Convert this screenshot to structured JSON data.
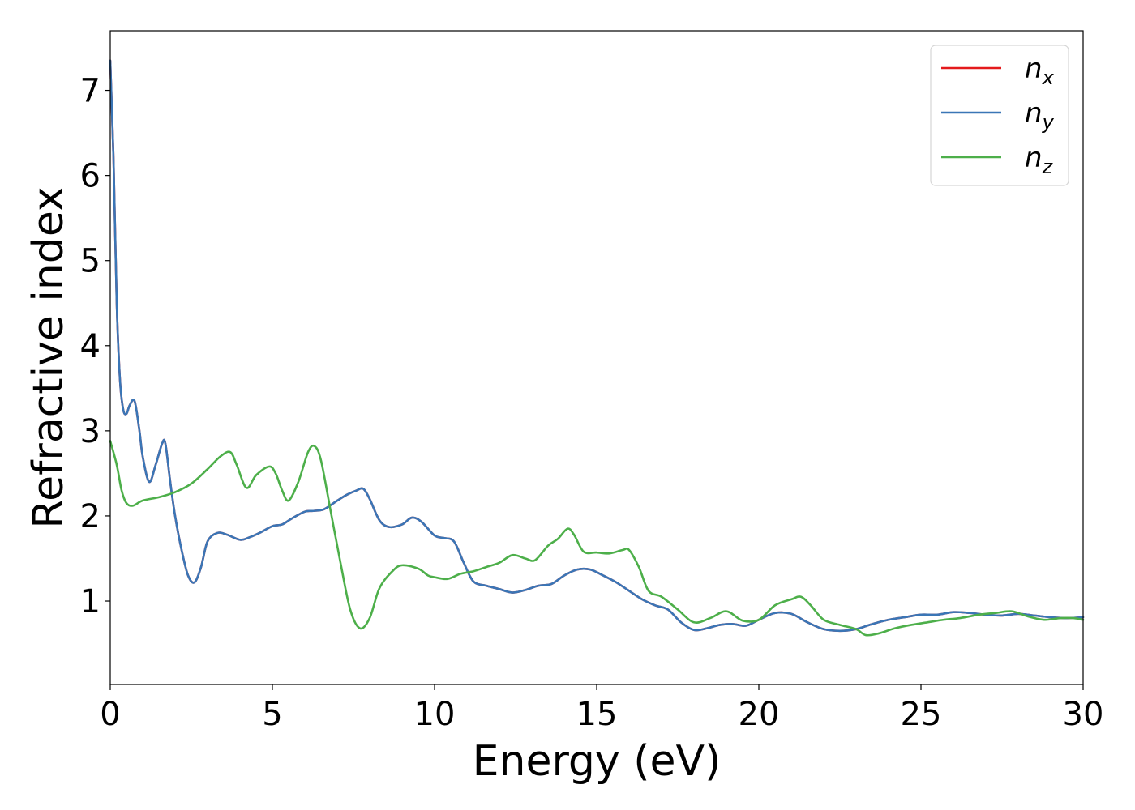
{
  "chart_data": {
    "type": "line",
    "xlabel": "Energy (eV)",
    "ylabel": "Refractive index",
    "xlim": [
      0,
      30
    ],
    "ylim": [
      0.02,
      7.7
    ],
    "xticks": [
      0,
      5,
      10,
      15,
      20,
      25,
      30
    ],
    "yticks": [
      1,
      2,
      3,
      4,
      5,
      6,
      7
    ],
    "grid": false,
    "legend_position": "top-right",
    "series": [
      {
        "name": "n",
        "subscript": "x",
        "color": "#e41a1c",
        "x": [
          0,
          0.1,
          0.2,
          0.3,
          0.4,
          0.5,
          0.6,
          0.75,
          0.9,
          1.0,
          1.2,
          1.4,
          1.6,
          1.7,
          1.85,
          2.0,
          2.2,
          2.4,
          2.6,
          2.8,
          3.0,
          3.3,
          3.6,
          4.0,
          4.3,
          4.6,
          5.0,
          5.3,
          5.6,
          6.0,
          6.3,
          6.6,
          7.0,
          7.3,
          7.6,
          7.8,
          8.0,
          8.3,
          8.6,
          9.0,
          9.3,
          9.6,
          10.0,
          10.3,
          10.6,
          10.9,
          11.2,
          11.6,
          12.0,
          12.4,
          12.8,
          13.2,
          13.6,
          14.0,
          14.4,
          14.8,
          15.2,
          15.6,
          16.0,
          16.4,
          16.8,
          17.2,
          17.6,
          18.0,
          18.4,
          18.8,
          19.2,
          19.6,
          20.0,
          20.5,
          21.0,
          21.5,
          22.0,
          22.5,
          23.0,
          23.5,
          24.0,
          24.5,
          25.0,
          25.5,
          26.0,
          26.5,
          27.0,
          27.5,
          28.0,
          28.5,
          29.0,
          29.5,
          30.0
        ],
        "values": [
          7.35,
          6.2,
          4.5,
          3.6,
          3.25,
          3.2,
          3.3,
          3.35,
          3.0,
          2.7,
          2.4,
          2.6,
          2.85,
          2.85,
          2.4,
          2.0,
          1.6,
          1.3,
          1.22,
          1.4,
          1.7,
          1.8,
          1.78,
          1.72,
          1.75,
          1.8,
          1.88,
          1.9,
          1.97,
          2.05,
          2.06,
          2.08,
          2.18,
          2.25,
          2.3,
          2.32,
          2.2,
          1.95,
          1.87,
          1.9,
          1.98,
          1.93,
          1.77,
          1.74,
          1.7,
          1.45,
          1.23,
          1.18,
          1.14,
          1.1,
          1.13,
          1.18,
          1.2,
          1.3,
          1.37,
          1.37,
          1.3,
          1.22,
          1.12,
          1.02,
          0.95,
          0.9,
          0.75,
          0.66,
          0.68,
          0.72,
          0.73,
          0.71,
          0.78,
          0.86,
          0.85,
          0.75,
          0.67,
          0.65,
          0.67,
          0.73,
          0.78,
          0.81,
          0.84,
          0.84,
          0.87,
          0.86,
          0.84,
          0.83,
          0.85,
          0.83,
          0.81,
          0.8,
          0.81
        ]
      },
      {
        "name": "n",
        "subscript": "y",
        "color": "#3a76b6",
        "x": [
          0,
          0.1,
          0.2,
          0.3,
          0.4,
          0.5,
          0.6,
          0.75,
          0.9,
          1.0,
          1.2,
          1.4,
          1.6,
          1.7,
          1.85,
          2.0,
          2.2,
          2.4,
          2.6,
          2.8,
          3.0,
          3.3,
          3.6,
          4.0,
          4.3,
          4.6,
          5.0,
          5.3,
          5.6,
          6.0,
          6.3,
          6.6,
          7.0,
          7.3,
          7.6,
          7.8,
          8.0,
          8.3,
          8.6,
          9.0,
          9.3,
          9.6,
          10.0,
          10.3,
          10.6,
          10.9,
          11.2,
          11.6,
          12.0,
          12.4,
          12.8,
          13.2,
          13.6,
          14.0,
          14.4,
          14.8,
          15.2,
          15.6,
          16.0,
          16.4,
          16.8,
          17.2,
          17.6,
          18.0,
          18.4,
          18.8,
          19.2,
          19.6,
          20.0,
          20.5,
          21.0,
          21.5,
          22.0,
          22.5,
          23.0,
          23.5,
          24.0,
          24.5,
          25.0,
          25.5,
          26.0,
          26.5,
          27.0,
          27.5,
          28.0,
          28.5,
          29.0,
          29.5,
          30.0
        ],
        "values": [
          7.35,
          6.2,
          4.5,
          3.6,
          3.25,
          3.2,
          3.3,
          3.35,
          3.0,
          2.7,
          2.4,
          2.6,
          2.85,
          2.85,
          2.4,
          2.0,
          1.6,
          1.3,
          1.22,
          1.4,
          1.7,
          1.8,
          1.78,
          1.72,
          1.75,
          1.8,
          1.88,
          1.9,
          1.97,
          2.05,
          2.06,
          2.08,
          2.18,
          2.25,
          2.3,
          2.32,
          2.2,
          1.95,
          1.87,
          1.9,
          1.98,
          1.93,
          1.77,
          1.74,
          1.7,
          1.45,
          1.23,
          1.18,
          1.14,
          1.1,
          1.13,
          1.18,
          1.2,
          1.3,
          1.37,
          1.37,
          1.3,
          1.22,
          1.12,
          1.02,
          0.95,
          0.9,
          0.75,
          0.66,
          0.68,
          0.72,
          0.73,
          0.71,
          0.78,
          0.86,
          0.85,
          0.75,
          0.67,
          0.65,
          0.67,
          0.73,
          0.78,
          0.81,
          0.84,
          0.84,
          0.87,
          0.86,
          0.84,
          0.83,
          0.85,
          0.83,
          0.81,
          0.8,
          0.81
        ]
      },
      {
        "name": "n",
        "subscript": "z",
        "color": "#4daf4a",
        "x": [
          0,
          0.2,
          0.35,
          0.5,
          0.7,
          1.0,
          1.5,
          2.0,
          2.5,
          3.0,
          3.4,
          3.7,
          3.9,
          4.2,
          4.5,
          4.9,
          5.1,
          5.3,
          5.5,
          5.8,
          6.1,
          6.3,
          6.5,
          6.8,
          7.1,
          7.4,
          7.7,
          8.0,
          8.3,
          8.7,
          9.0,
          9.5,
          9.8,
          10.0,
          10.4,
          10.8,
          11.2,
          11.6,
          12.0,
          12.4,
          12.8,
          13.1,
          13.5,
          13.8,
          14.1,
          14.3,
          14.6,
          15.0,
          15.4,
          15.8,
          16.0,
          16.3,
          16.6,
          17.0,
          17.5,
          18.0,
          18.5,
          19.0,
          19.5,
          20.0,
          20.5,
          21.0,
          21.3,
          21.6,
          22.0,
          22.5,
          23.0,
          23.3,
          23.7,
          24.2,
          24.7,
          25.2,
          25.7,
          26.2,
          26.8,
          27.3,
          27.8,
          28.3,
          28.8,
          29.3,
          29.7,
          30.0
        ],
        "values": [
          2.88,
          2.6,
          2.3,
          2.15,
          2.12,
          2.18,
          2.22,
          2.28,
          2.38,
          2.55,
          2.7,
          2.75,
          2.6,
          2.33,
          2.48,
          2.58,
          2.5,
          2.3,
          2.18,
          2.4,
          2.75,
          2.82,
          2.65,
          2.05,
          1.45,
          0.9,
          0.68,
          0.8,
          1.15,
          1.35,
          1.42,
          1.38,
          1.3,
          1.28,
          1.26,
          1.32,
          1.35,
          1.4,
          1.45,
          1.54,
          1.5,
          1.48,
          1.65,
          1.73,
          1.85,
          1.78,
          1.58,
          1.57,
          1.56,
          1.6,
          1.6,
          1.4,
          1.12,
          1.05,
          0.9,
          0.75,
          0.8,
          0.88,
          0.77,
          0.78,
          0.95,
          1.02,
          1.05,
          0.95,
          0.78,
          0.72,
          0.67,
          0.6,
          0.62,
          0.68,
          0.72,
          0.75,
          0.78,
          0.8,
          0.84,
          0.86,
          0.88,
          0.82,
          0.78,
          0.8,
          0.8,
          0.78
        ]
      }
    ]
  }
}
